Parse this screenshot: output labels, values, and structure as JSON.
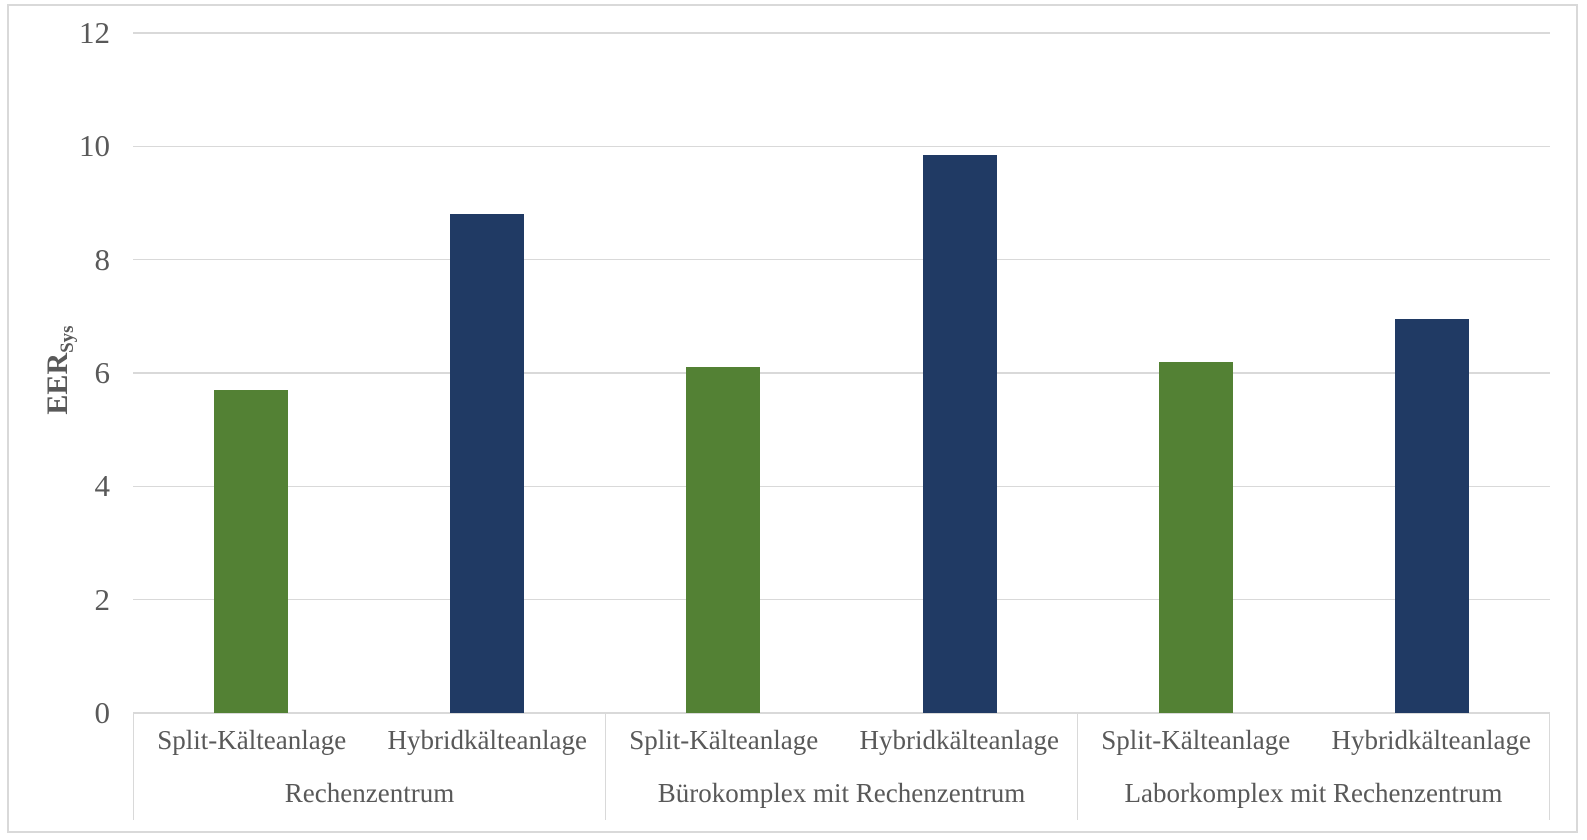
{
  "chart_data": {
    "type": "bar",
    "title": "",
    "ylabel": {
      "base": "EER",
      "subscript": "Sys"
    },
    "xlabel": "",
    "ylim": [
      0,
      12
    ],
    "yticks": [
      0,
      2,
      4,
      6,
      8,
      10,
      12
    ],
    "grid": true,
    "legend_position": "none",
    "series": [
      {
        "name": "Split-Kälteanlage",
        "color": "#538134"
      },
      {
        "name": "Hybridkälteanlage",
        "color": "#203A64"
      }
    ],
    "groups": [
      {
        "label": "Rechenzentrum",
        "values": [
          5.7,
          8.8
        ]
      },
      {
        "label": "Bürokomplex mit Rechenzentrum",
        "values": [
          6.1,
          9.85
        ]
      },
      {
        "label": "Laborkomplex mit Rechenzentrum",
        "values": [
          6.2,
          6.95
        ]
      }
    ]
  },
  "style": {
    "grid_color": "#D9D9D9",
    "border_color": "#D9D9D9",
    "text_color": "#595959"
  }
}
